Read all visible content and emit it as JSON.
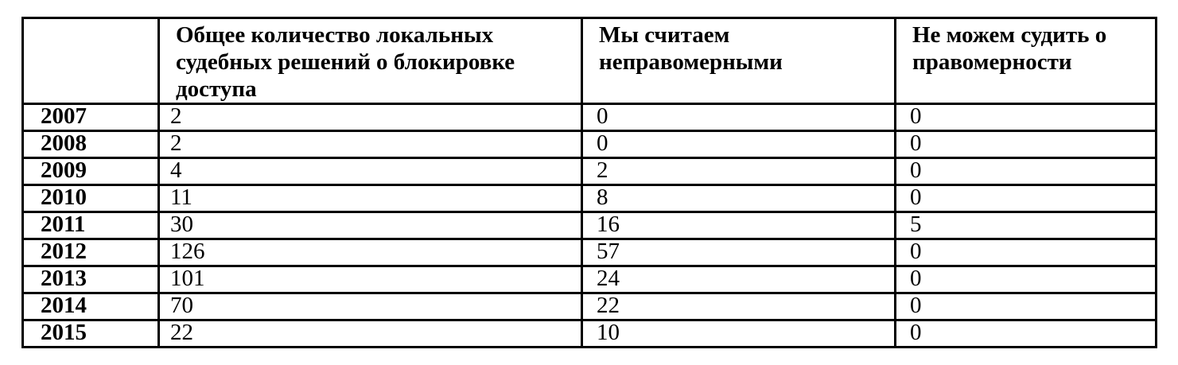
{
  "document": {
    "background_color": "#ffffff",
    "text_color": "#000000",
    "border_color": "#000000"
  },
  "table": {
    "columns": [
      {
        "label": ""
      },
      {
        "label": "Общее количество локальных судебных решений о блокировке доступа"
      },
      {
        "label": "Мы считаем неправомерными"
      },
      {
        "label": "Не можем судить о правомерности"
      }
    ],
    "rows": [
      {
        "year": "2007",
        "total": "2",
        "unlawful": "0",
        "cannot_judge": "0"
      },
      {
        "year": "2008",
        "total": "2",
        "unlawful": "0",
        "cannot_judge": "0"
      },
      {
        "year": "2009",
        "total": "4",
        "unlawful": "2",
        "cannot_judge": "0"
      },
      {
        "year": "2010",
        "total": "11",
        "unlawful": "8",
        "cannot_judge": "0"
      },
      {
        "year": "2011",
        "total": "30",
        "unlawful": "16",
        "cannot_judge": "5"
      },
      {
        "year": "2012",
        "total": "126",
        "unlawful": "57",
        "cannot_judge": "0"
      },
      {
        "year": "2013",
        "total": "101",
        "unlawful": "24",
        "cannot_judge": "0"
      },
      {
        "year": "2014",
        "total": "70",
        "unlawful": "22",
        "cannot_judge": "0"
      },
      {
        "year": "2015",
        "total": "22",
        "unlawful": "10",
        "cannot_judge": "0"
      }
    ]
  }
}
